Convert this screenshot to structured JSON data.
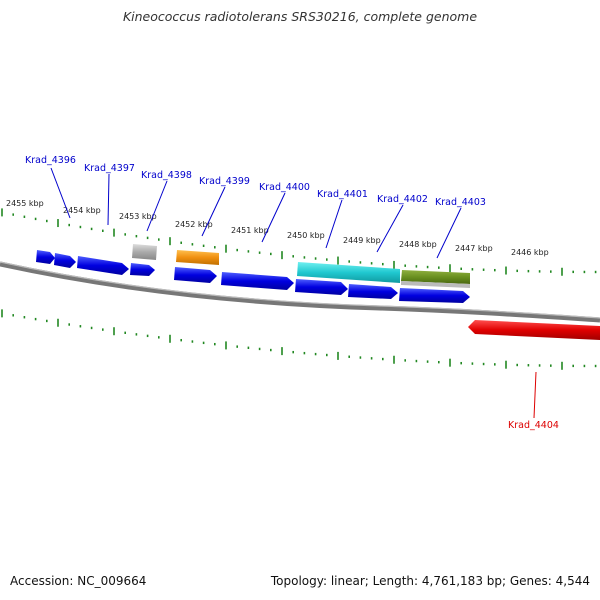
{
  "title": "Kineococcus radiotolerans SRS30216, complete genome",
  "footer": {
    "accession": "Accession: NC_009664",
    "topology": "Topology: linear; Length: 4,761,183 bp; Genes: 4,544"
  },
  "scale": {
    "ticks": [
      "2455 kbp",
      "2454 kbp",
      "2453 kbp",
      "2452 kbp",
      "2451 kbp",
      "2450 kbp",
      "2449 kbp",
      "2448 kbp",
      "2447 kbp",
      "2446 kbp"
    ]
  },
  "genes": [
    {
      "name": "Krad_4396",
      "color": "#0000dd",
      "strand": "upper"
    },
    {
      "name": "Krad_4397",
      "color": "#0000dd",
      "strand": "upper"
    },
    {
      "name": "Krad_4398",
      "color": "#0000dd",
      "strand": "upper"
    },
    {
      "name": "Krad_4399",
      "color": "#0000dd",
      "strand": "upper"
    },
    {
      "name": "Krad_4400",
      "color": "#0000dd",
      "strand": "upper"
    },
    {
      "name": "Krad_4401",
      "color": "#0000dd",
      "strand": "upper"
    },
    {
      "name": "Krad_4402",
      "color": "#0000dd",
      "strand": "upper"
    },
    {
      "name": "Krad_4403",
      "color": "#0000dd",
      "strand": "upper"
    },
    {
      "name": "Krad_4404",
      "color": "#dd0000",
      "strand": "lower"
    }
  ],
  "colors": {
    "cds": "#1010e0",
    "rna_grey": "#aaaaaa",
    "orange": "#f0a020",
    "cyan": "#20c8d0",
    "olive": "#6a9020",
    "reverse": "#e00000",
    "tick_green": "#228822",
    "backbone": "#777777"
  }
}
